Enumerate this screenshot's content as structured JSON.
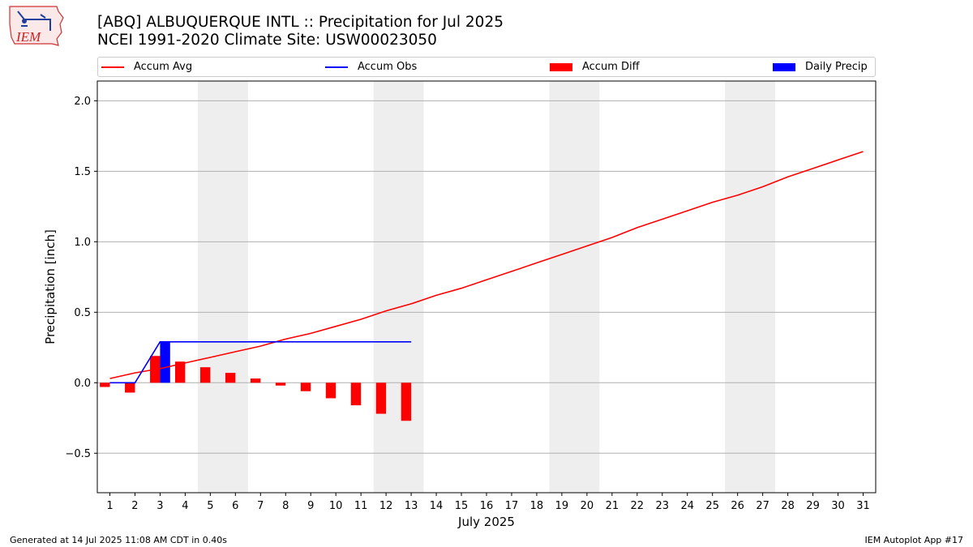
{
  "header": {
    "title": "[ABQ] ALBUQUERQUE INTL :: Precipitation for Jul 2025",
    "subtitle": "NCEI 1991-2020 Climate Site: USW00023050"
  },
  "logo": {
    "text": "IEM",
    "icon": "iowa-state-outline-icon"
  },
  "footer": {
    "left": "Generated at 14 Jul 2025 11:08 AM CDT in 0.40s",
    "right": "IEM Autoplot App #17"
  },
  "legend": {
    "placement": "top, above plot",
    "items": [
      {
        "label": "Accum Avg",
        "kind": "line",
        "color": "#ff0000"
      },
      {
        "label": "Accum Obs",
        "kind": "line",
        "color": "#0000ff"
      },
      {
        "label": "Accum Diff",
        "kind": "bar",
        "color": "#ff0000"
      },
      {
        "label": "Daily Precip",
        "kind": "bar",
        "color": "#0000ff"
      }
    ]
  },
  "chart_data": {
    "type": "bar",
    "title": "[ABQ] ALBUQUERQUE INTL :: Precipitation for Jul 2025",
    "subtitle": "NCEI 1991-2020 Climate Site: USW00023050",
    "xlabel": "July 2025",
    "ylabel": "Precipitation [inch]",
    "xlim": [
      0.5,
      31.5
    ],
    "ylim": [
      -0.78,
      2.14
    ],
    "yticks": [
      -0.5,
      0.0,
      0.5,
      1.0,
      1.5,
      2.0
    ],
    "ytick_labels": [
      "−0.5",
      "0.0",
      "0.5",
      "1.0",
      "1.5",
      "2.0"
    ],
    "x": [
      1,
      2,
      3,
      4,
      5,
      6,
      7,
      8,
      9,
      10,
      11,
      12,
      13,
      14,
      15,
      16,
      17,
      18,
      19,
      20,
      21,
      22,
      23,
      24,
      25,
      26,
      27,
      28,
      29,
      30,
      31
    ],
    "xtick_labels": [
      "1",
      "2",
      "3",
      "4",
      "5",
      "6",
      "7",
      "8",
      "9",
      "10",
      "11",
      "12",
      "13",
      "14",
      "15",
      "16",
      "17",
      "18",
      "19",
      "20",
      "21",
      "22",
      "23",
      "24",
      "25",
      "26",
      "27",
      "28",
      "29",
      "30",
      "31"
    ],
    "grid": "horizontal",
    "weekend_shading": [
      [
        4.5,
        6.5
      ],
      [
        11.5,
        13.5
      ],
      [
        18.5,
        20.5
      ],
      [
        25.5,
        27.5
      ]
    ],
    "series": [
      {
        "name": "Accum Avg",
        "type": "line",
        "color": "#ff0000",
        "x": [
          1,
          2,
          3,
          4,
          5,
          6,
          7,
          8,
          9,
          10,
          11,
          12,
          13,
          14,
          15,
          16,
          17,
          18,
          19,
          20,
          21,
          22,
          23,
          24,
          25,
          26,
          27,
          28,
          29,
          30,
          31
        ],
        "values": [
          0.03,
          0.07,
          0.1,
          0.14,
          0.18,
          0.22,
          0.26,
          0.31,
          0.35,
          0.4,
          0.45,
          0.51,
          0.56,
          0.62,
          0.67,
          0.73,
          0.79,
          0.85,
          0.91,
          0.97,
          1.03,
          1.1,
          1.16,
          1.22,
          1.28,
          1.33,
          1.39,
          1.46,
          1.52,
          1.58,
          1.64
        ]
      },
      {
        "name": "Accum Obs",
        "type": "line",
        "color": "#0000ff",
        "x": [
          1,
          2,
          3,
          4,
          5,
          6,
          7,
          8,
          9,
          10,
          11,
          12,
          13
        ],
        "values": [
          0.0,
          0.0,
          0.29,
          0.29,
          0.29,
          0.29,
          0.29,
          0.29,
          0.29,
          0.29,
          0.29,
          0.29,
          0.29
        ]
      },
      {
        "name": "Accum Diff",
        "type": "bar",
        "color": "#ff0000",
        "x": [
          1,
          2,
          3,
          4,
          5,
          6,
          7,
          8,
          9,
          10,
          11,
          12,
          13
        ],
        "values": [
          -0.03,
          -0.07,
          0.19,
          0.15,
          0.11,
          0.07,
          0.03,
          -0.02,
          -0.06,
          -0.11,
          -0.16,
          -0.22,
          -0.27
        ]
      },
      {
        "name": "Daily Precip",
        "type": "bar",
        "color": "#0000ff",
        "x": [
          1,
          2,
          3,
          4,
          5,
          6,
          7,
          8,
          9,
          10,
          11,
          12,
          13
        ],
        "values": [
          0,
          0,
          0.29,
          0,
          0,
          0,
          0,
          0,
          0,
          0,
          0,
          0,
          0
        ]
      }
    ]
  }
}
